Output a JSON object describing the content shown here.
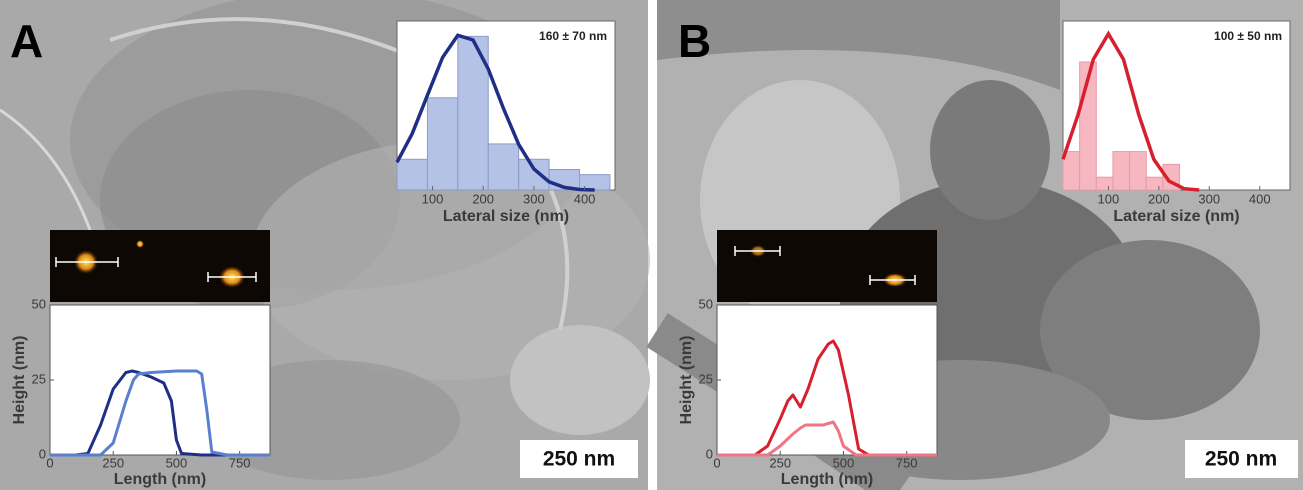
{
  "panels": [
    {
      "label": "A",
      "scale_bar": "250 nm"
    },
    {
      "label": "B",
      "scale_bar": "250 nm"
    }
  ],
  "chart_data": [
    {
      "type": "histogram",
      "annotation": "160 ± 70 nm",
      "xlabel": "Lateral size (nm)",
      "bins": [
        30,
        90,
        150,
        210,
        270,
        330,
        390,
        450
      ],
      "values": [
        6,
        18,
        30,
        9,
        6,
        4,
        3
      ],
      "color": "#b4c2e6",
      "edge_color": "#8d9bc8",
      "fit_x": [
        30,
        60,
        90,
        120,
        150,
        180,
        210,
        240,
        270,
        300,
        330,
        360,
        390,
        420
      ],
      "fit_y": [
        5.4,
        11.0,
        18.5,
        25.9,
        30.2,
        29.3,
        23.6,
        15.9,
        8.9,
        4.1,
        1.6,
        0.5,
        0.1,
        0.0
      ],
      "fit_color": "#1f2f86",
      "xlim": [
        30,
        460
      ],
      "ylim": [
        0,
        33
      ],
      "xticks": [
        100,
        200,
        300,
        400
      ]
    },
    {
      "type": "line",
      "xlabel": "Length (nm)",
      "ylabel": "Height (nm)",
      "xlim": [
        0,
        870
      ],
      "ylim": [
        0,
        50
      ],
      "xticks": [
        0,
        250,
        500,
        750
      ],
      "yticks": [
        0,
        25,
        50
      ],
      "series": [
        {
          "color": "#1f2f86",
          "x": [
            0,
            100,
            150,
            200,
            250,
            300,
            325,
            350,
            400,
            450,
            480,
            500,
            520,
            600,
            870
          ],
          "values": [
            0,
            0,
            0.5,
            10,
            22,
            27.5,
            28,
            27.5,
            26,
            24,
            18,
            5,
            0.5,
            0,
            0
          ]
        },
        {
          "color": "#5b7fd0",
          "x": [
            0,
            200,
            250,
            300,
            330,
            350,
            400,
            500,
            580,
            600,
            620,
            640,
            700,
            870
          ],
          "values": [
            0,
            0,
            4,
            18,
            25,
            27,
            27.5,
            28,
            28,
            27,
            15,
            1,
            0,
            0
          ]
        }
      ]
    },
    {
      "type": "histogram",
      "annotation": "100 ± 50 nm",
      "xlabel": "Lateral size (nm)",
      "bins": [
        10,
        43,
        76,
        109,
        142,
        175,
        208,
        241
      ],
      "values": [
        3,
        10,
        1,
        3,
        3,
        1,
        2
      ],
      "color": "#f7b7c1",
      "edge_color": "#e79aa6",
      "fit_x": [
        10,
        40,
        70,
        100,
        130,
        160,
        190,
        220,
        250,
        280
      ],
      "fit_y": [
        2.4,
        5.9,
        10.2,
        12.2,
        10.2,
        5.9,
        2.4,
        0.7,
        0.1,
        0.0
      ],
      "fit_color": "#d6202f",
      "xlim": [
        10,
        460
      ],
      "ylim": [
        0,
        13.2
      ],
      "xticks": [
        100,
        200,
        300,
        400
      ]
    },
    {
      "type": "line",
      "xlabel": "Length (nm)",
      "ylabel": "Height (nm)",
      "xlim": [
        0,
        870
      ],
      "ylim": [
        0,
        50
      ],
      "xticks": [
        0,
        250,
        500,
        750
      ],
      "yticks": [
        0,
        25,
        50
      ],
      "series": [
        {
          "color": "#d6202f",
          "x": [
            0,
            150,
            200,
            250,
            280,
            300,
            330,
            360,
            400,
            440,
            460,
            480,
            520,
            560,
            600,
            870
          ],
          "values": [
            0,
            0,
            3,
            12,
            18,
            20,
            16,
            22,
            32,
            37,
            38,
            35,
            20,
            2,
            0,
            0
          ]
        },
        {
          "color": "#f07585",
          "x": [
            0,
            200,
            250,
            300,
            330,
            350,
            380,
            420,
            460,
            480,
            500,
            550,
            870
          ],
          "values": [
            0,
            0,
            3,
            7,
            9,
            10,
            10,
            10,
            11,
            8,
            3,
            0,
            0
          ]
        }
      ]
    }
  ]
}
